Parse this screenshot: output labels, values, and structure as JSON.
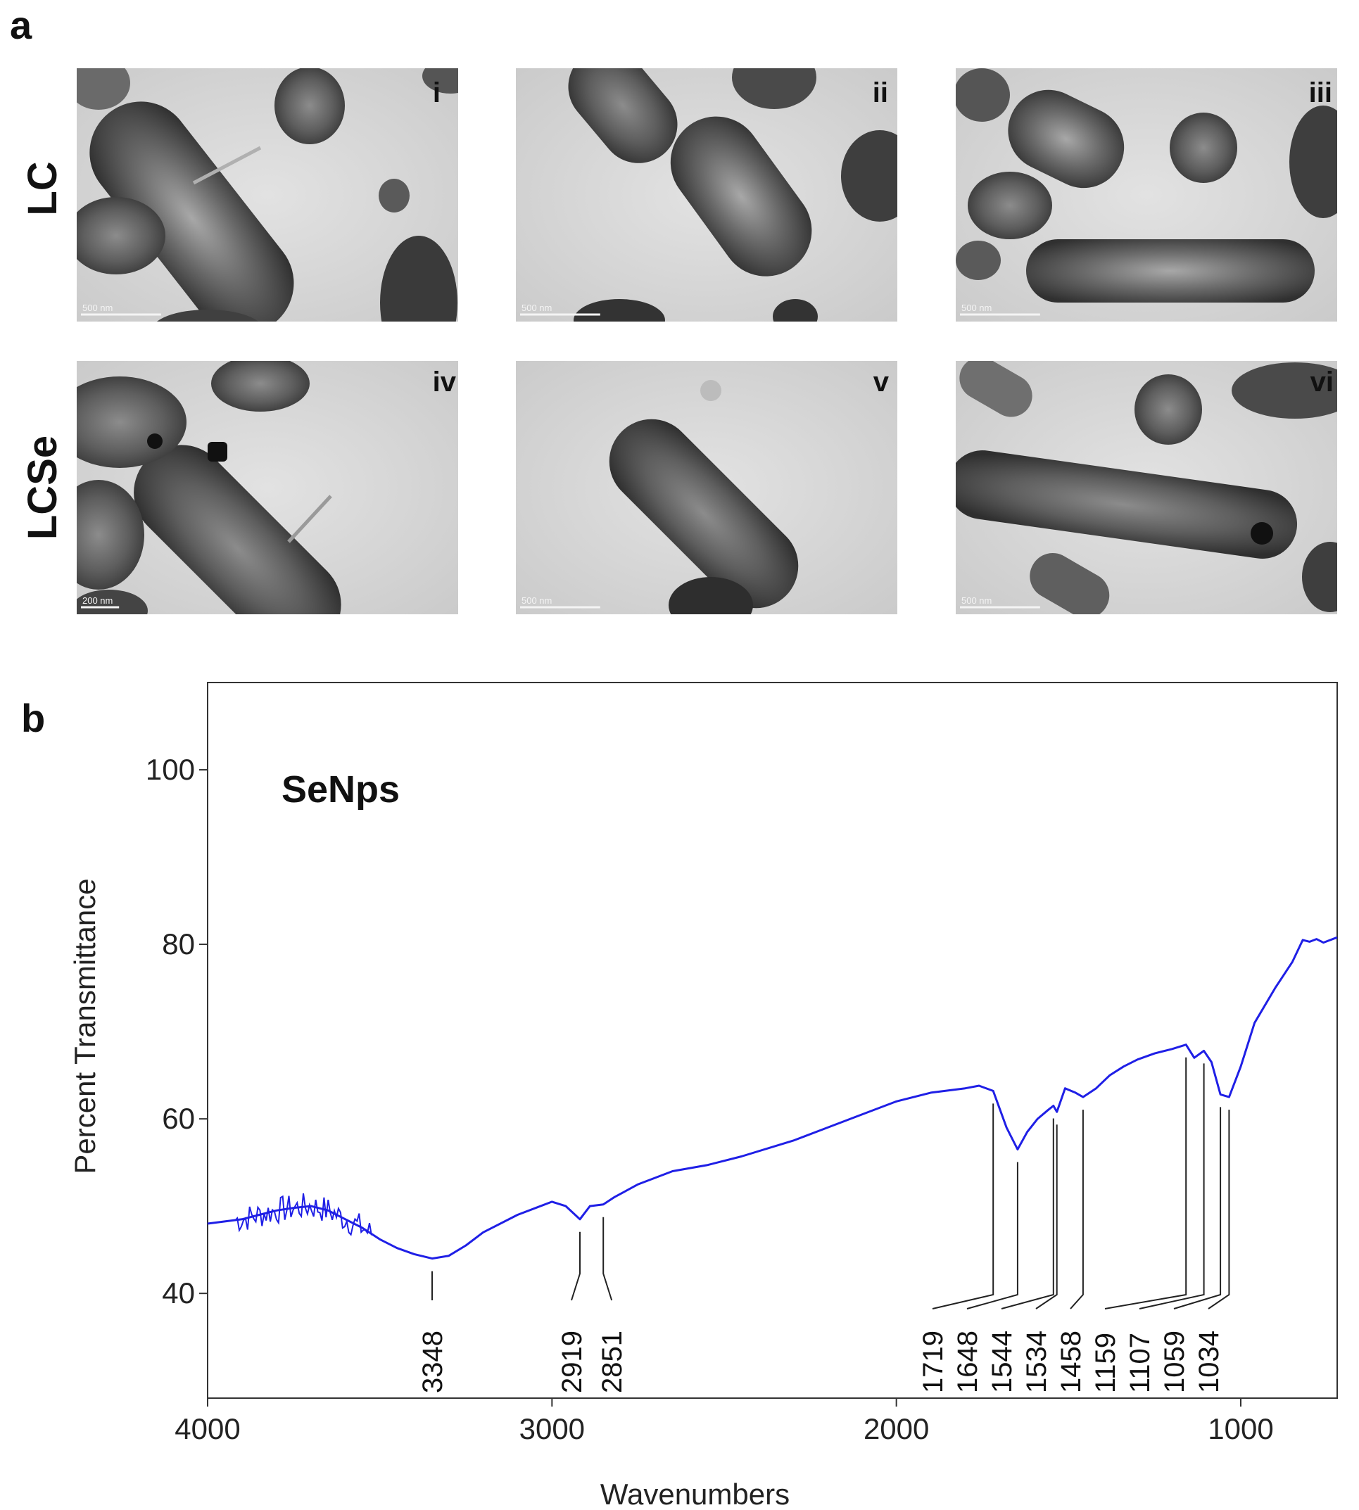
{
  "figure": {
    "panel_a_label": "a",
    "panel_b_label": "b",
    "rows": [
      {
        "label": "LC"
      },
      {
        "label": "LCSe"
      }
    ],
    "micrographs": [
      {
        "id": "i",
        "scale_text": "500 nm",
        "scale_fraction": 0.21
      },
      {
        "id": "ii",
        "scale_text": "500 nm",
        "scale_fraction": 0.21
      },
      {
        "id": "iii",
        "scale_text": "500 nm",
        "scale_fraction": 0.21
      },
      {
        "id": "iv",
        "scale_text": "200 nm",
        "scale_fraction": 0.1
      },
      {
        "id": "v",
        "scale_text": "500 nm",
        "scale_fraction": 0.21
      },
      {
        "id": "vi",
        "scale_text": "500 nm",
        "scale_fraction": 0.21
      }
    ]
  },
  "chart_data": {
    "type": "line",
    "title": "SeNps",
    "xlabel": "Wavenumbers",
    "ylabel": "Percent Transmittance",
    "xlim": [
      4000,
      720
    ],
    "ylim": [
      28,
      110
    ],
    "xticks": [
      4000,
      3000,
      2000,
      1000
    ],
    "yticks": [
      40,
      60,
      80,
      100
    ],
    "grid": false,
    "line_color": "#1f1fe6",
    "series": [
      {
        "x": [
          4000,
          3900,
          3850,
          3800,
          3750,
          3700,
          3650,
          3600,
          3550,
          3500,
          3450,
          3400,
          3348,
          3300,
          3250,
          3200,
          3100,
          3000,
          2960,
          2919,
          2890,
          2851,
          2820,
          2750,
          2650,
          2550,
          2450,
          2300,
          2200,
          2100,
          2000,
          1900,
          1800,
          1760,
          1719,
          1680,
          1648,
          1620,
          1590,
          1560,
          1544,
          1534,
          1510,
          1480,
          1458,
          1420,
          1380,
          1340,
          1300,
          1250,
          1200,
          1159,
          1135,
          1107,
          1085,
          1059,
          1034,
          1000,
          960,
          900,
          850,
          820,
          800,
          780,
          760,
          720
        ],
        "y": [
          48,
          48.5,
          49,
          49.5,
          49.8,
          50,
          49.5,
          48.5,
          47.5,
          46.2,
          45.2,
          44.5,
          44,
          44.3,
          45.5,
          47,
          49,
          50.5,
          50,
          48.5,
          50,
          50.2,
          51,
          52.5,
          54,
          54.7,
          55.7,
          57.5,
          59,
          60.5,
          62,
          63,
          63.5,
          63.8,
          63.2,
          59,
          56.5,
          58.5,
          60,
          61,
          61.5,
          60.8,
          63.5,
          63,
          62.5,
          63.5,
          65,
          66,
          66.8,
          67.5,
          68,
          68.5,
          67,
          67.8,
          66.5,
          62.8,
          62.5,
          66,
          71,
          75,
          78,
          80.5,
          80.3,
          80.6,
          80.2,
          80.8
        ]
      }
    ],
    "peak_labels": [
      {
        "x": 3348,
        "text": "3348"
      },
      {
        "x": 2919,
        "text": "2919"
      },
      {
        "x": 2851,
        "text": "2851"
      },
      {
        "x": 1719,
        "text": "1719"
      },
      {
        "x": 1648,
        "text": "1648"
      },
      {
        "x": 1544,
        "text": "1544"
      },
      {
        "x": 1534,
        "text": "1534"
      },
      {
        "x": 1458,
        "text": "1458"
      },
      {
        "x": 1159,
        "text": "1159"
      },
      {
        "x": 1107,
        "text": "1107"
      },
      {
        "x": 1059,
        "text": "1059"
      },
      {
        "x": 1034,
        "text": "1034"
      }
    ]
  }
}
